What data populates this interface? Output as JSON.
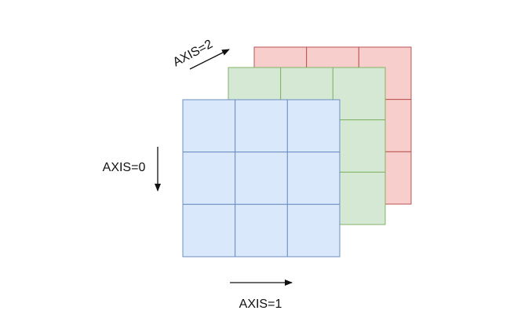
{
  "diagram": {
    "layers": [
      {
        "name": "back",
        "fill": "#f8cecc",
        "stroke": "#b85450",
        "rows": 3,
        "cols": 3
      },
      {
        "name": "middle",
        "fill": "#d5e8d4",
        "stroke": "#82b366",
        "rows": 3,
        "cols": 3
      },
      {
        "name": "front",
        "fill": "#dae8fc",
        "stroke": "#6c8ebf",
        "rows": 3,
        "cols": 3
      }
    ],
    "labels": {
      "axis0": "AXIS=0",
      "axis1": "AXIS=1",
      "axis2": "AXIS=2"
    }
  }
}
